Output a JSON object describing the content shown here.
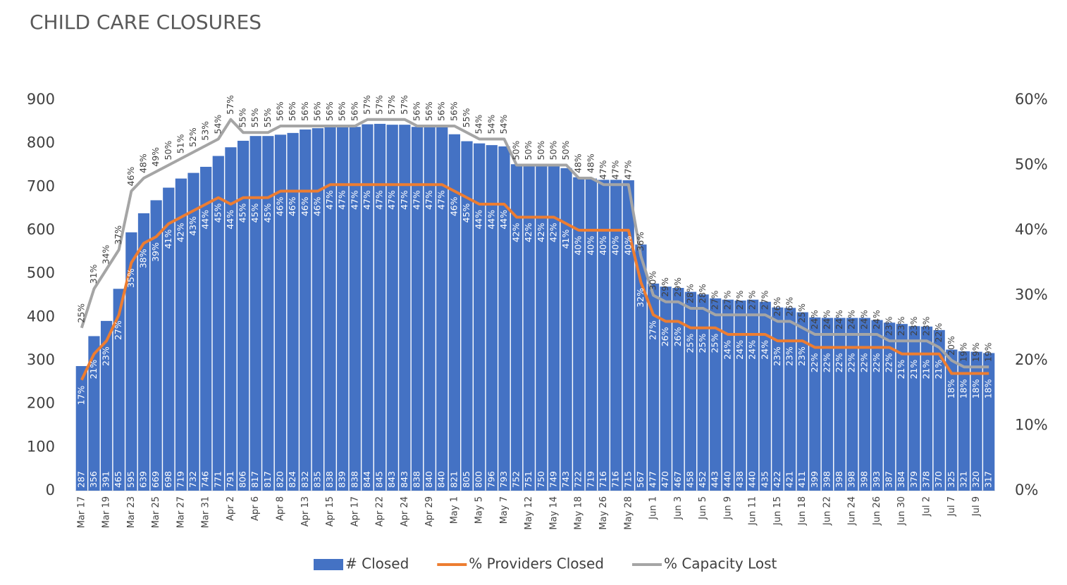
{
  "chart_data": {
    "type": "bar-line",
    "title": "CHILD CARE CLOSURES",
    "categories": [
      "Mar 17",
      null,
      "Mar 19",
      null,
      "Mar 23",
      null,
      "Mar 25",
      null,
      "Mar 27",
      null,
      "Mar 31",
      null,
      "Apr 2",
      null,
      "Apr 6",
      null,
      "Apr 8",
      null,
      "Apr 13",
      null,
      "Apr 15",
      null,
      "Apr 17",
      null,
      "Apr 22",
      null,
      "Apr 24",
      null,
      "Apr 29",
      null,
      "May 1",
      null,
      "May 5",
      null,
      "May 7",
      null,
      "May 12",
      null,
      "May 14",
      null,
      "May 18",
      null,
      "May 26",
      null,
      "May 28",
      null,
      "Jun 1",
      null,
      "Jun 3",
      null,
      "Jun 5",
      null,
      "Jun 9",
      null,
      "Jun 11",
      null,
      "Jun 15",
      null,
      "Jun 18",
      null,
      "Jun 22",
      null,
      "Jun 24",
      null,
      "Jun 26",
      null,
      "Jun 30",
      null,
      "Jul 2",
      null,
      "Jul 7",
      null,
      "Jul 9",
      null
    ],
    "series": [
      {
        "name": "# Closed",
        "color": "#4472c4",
        "type": "bar",
        "values": [
          287,
          356,
          391,
          465,
          595,
          639,
          669,
          698,
          719,
          732,
          746,
          771,
          791,
          806,
          817,
          817,
          820,
          824,
          832,
          835,
          838,
          839,
          838,
          844,
          845,
          843,
          843,
          838,
          840,
          840,
          821,
          805,
          800,
          796,
          793,
          752,
          751,
          750,
          749,
          743,
          722,
          719,
          716,
          716,
          715,
          567,
          477,
          470,
          467,
          458,
          452,
          443,
          440,
          438,
          440,
          435,
          422,
          421,
          411,
          399,
          398,
          398,
          398,
          398,
          393,
          387,
          384,
          379,
          378,
          370,
          325,
          321,
          320,
          317
        ]
      },
      {
        "name": "% Providers Closed",
        "color": "#ed7d31",
        "type": "line",
        "axis": "y2",
        "values": [
          17,
          21,
          23,
          27,
          35,
          38,
          39,
          41,
          42,
          43,
          44,
          45,
          44,
          45,
          45,
          45,
          46,
          46,
          46,
          46,
          47,
          47,
          47,
          47,
          47,
          47,
          47,
          47,
          47,
          47,
          46,
          45,
          44,
          44,
          44,
          42,
          42,
          42,
          42,
          41,
          40,
          40,
          40,
          40,
          40,
          32,
          27,
          26,
          26,
          25,
          25,
          25,
          24,
          24,
          24,
          24,
          23,
          23,
          23,
          22,
          22,
          22,
          22,
          22,
          22,
          22,
          21,
          21,
          21,
          21,
          18,
          18,
          18,
          18
        ],
        "value_labels": [
          "17%",
          "21%",
          "23%",
          "27%",
          "35%",
          "38%",
          "39%",
          "41%",
          "42%",
          "43%",
          "44%",
          "45%",
          "44%",
          "45%",
          "45%",
          "45%",
          "46%",
          "46%",
          "46%",
          "46%",
          "47%",
          "47%",
          "47%",
          "47%",
          "47%",
          "47%",
          "47%",
          "47%",
          "47%",
          "47%",
          "46%",
          "45%",
          "44%",
          "44%",
          "44%",
          "42%",
          "42%",
          "42%",
          "42%",
          "41%",
          "40%",
          "40%",
          "40%",
          "40%",
          "40%",
          "32%",
          "27%",
          "26%",
          "26%",
          "25%",
          "25%",
          "25%",
          "24%",
          "24%",
          "24%",
          "24%",
          "23%",
          "23%",
          "23%",
          "22%",
          "22%",
          "22%",
          "22%",
          "22%",
          "22%",
          "22%",
          "21%",
          "21%",
          "21%",
          "21%",
          "18%",
          "18%",
          "18%",
          "18%"
        ]
      },
      {
        "name": "% Capacity Lost",
        "color": "#a5a5a5",
        "type": "line",
        "axis": "y2",
        "values": [
          25,
          31,
          34,
          37,
          46,
          48,
          49,
          50,
          51,
          52,
          53,
          54,
          57,
          55,
          55,
          55,
          56,
          56,
          56,
          56,
          56,
          56,
          56,
          57,
          57,
          57,
          57,
          56,
          56,
          56,
          56,
          55,
          54,
          54,
          54,
          50,
          50,
          50,
          50,
          50,
          48,
          48,
          47,
          47,
          47,
          36,
          30,
          29,
          29,
          28,
          28,
          27,
          27,
          27,
          27,
          27,
          26,
          26,
          25,
          24,
          24,
          24,
          24,
          24,
          24,
          23,
          23,
          23,
          23,
          22,
          20,
          19,
          19,
          19
        ],
        "value_labels": [
          "25%",
          "31%",
          "34%",
          "37%",
          "46%",
          "48%",
          "49%",
          "50%",
          "51%",
          "52%",
          "53%",
          "54%",
          "57%",
          "55%",
          "55%",
          "55%",
          "56%",
          "56%",
          "56%",
          "56%",
          "56%",
          "56%",
          "56%",
          "57%",
          "57%",
          "57%",
          "57%",
          "56%",
          "56%",
          "56%",
          "56%",
          "55%",
          "54%",
          "54%",
          "54%",
          "50%",
          "50%",
          "50%",
          "50%",
          "50%",
          "48%",
          "48%",
          "47%",
          "47%",
          "47%",
          "36%",
          "30%",
          "29%",
          "29%",
          "28%",
          "28%",
          "27%",
          "27%",
          "27%",
          "27%",
          "27%",
          "26%",
          "26%",
          "25%",
          "24%",
          "24%",
          "24%",
          "24%",
          "24%",
          "24%",
          "23%",
          "23%",
          "23%",
          "23%",
          "22%",
          "20%",
          "19%",
          "19%",
          "19%"
        ]
      }
    ],
    "ylim": [
      0,
      900
    ],
    "yticks": [
      0,
      100,
      200,
      300,
      400,
      500,
      600,
      700,
      800,
      900
    ],
    "y2lim": [
      0,
      60
    ],
    "y2ticks": [
      {
        "value": 0,
        "label": "0%"
      },
      {
        "value": 10,
        "label": "10%"
      },
      {
        "value": 20,
        "label": "20%"
      },
      {
        "value": 30,
        "label": "30%"
      },
      {
        "value": 40,
        "label": "40%"
      },
      {
        "value": 50,
        "label": "50%"
      },
      {
        "value": 60,
        "label": "60%"
      }
    ],
    "legend": "bottom"
  }
}
